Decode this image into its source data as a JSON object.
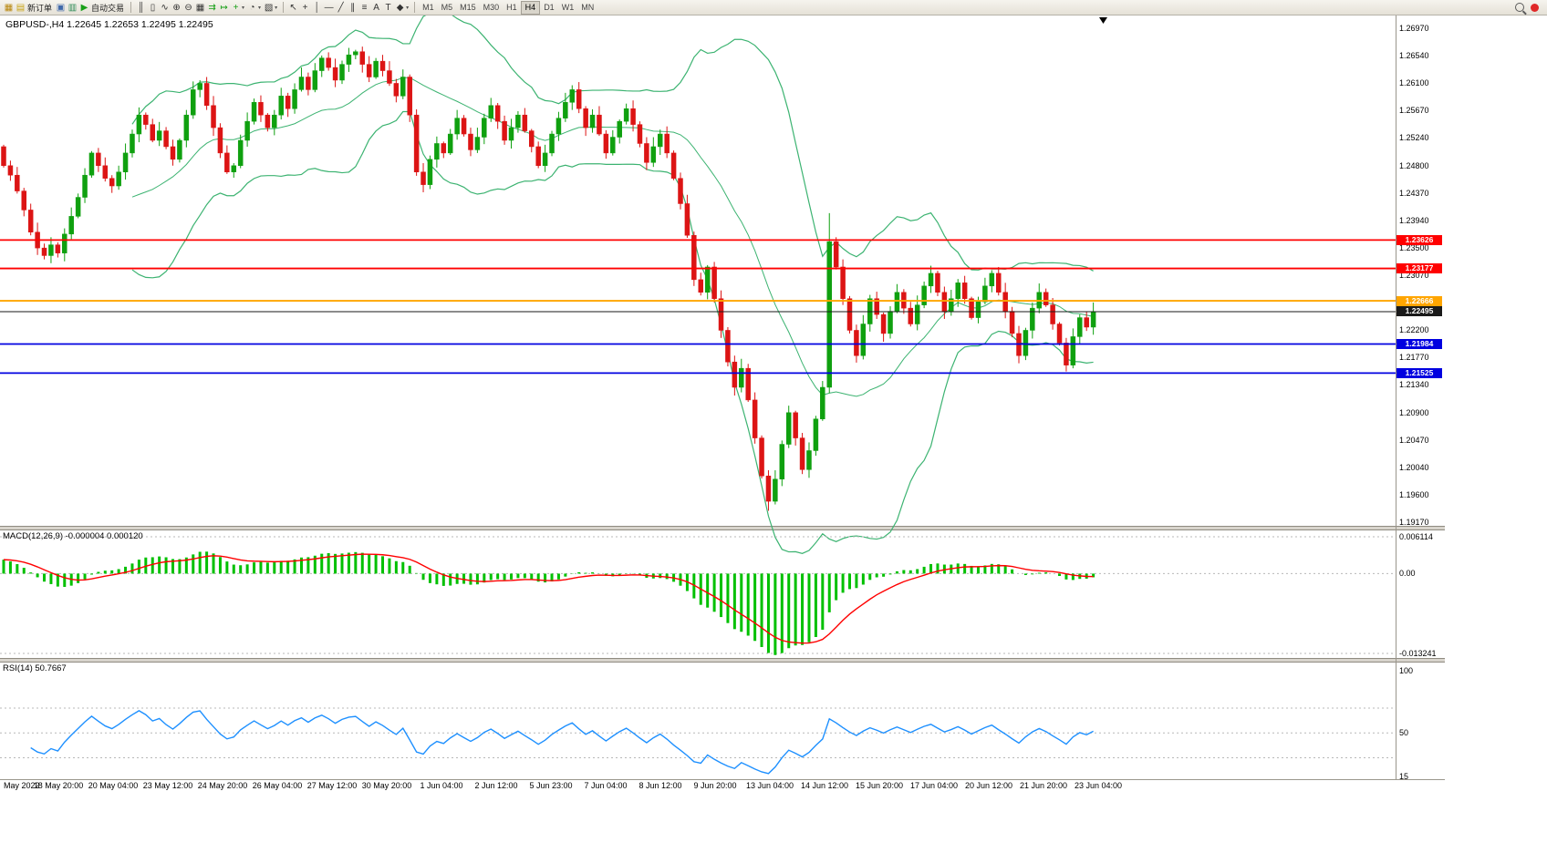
{
  "app": {
    "background": "#ffffff",
    "toolbar_bg": "#ece9e2"
  },
  "toolbar": {
    "icon_groups": [
      {
        "name": "file-group",
        "items": [
          {
            "name": "new-chart-icon",
            "glyph": "▦",
            "color": "#b8860b"
          },
          {
            "name": "new-order-icon",
            "glyph": "▤",
            "color": "#c8a415",
            "label": "新订单"
          },
          {
            "name": "charts-window-icon",
            "glyph": "▣",
            "color": "#4169aa"
          },
          {
            "name": "profiles-icon",
            "glyph": "▥",
            "color": "#2e8b57"
          },
          {
            "name": "auto-trading-icon",
            "glyph": "▶",
            "color": "#18a018",
            "label": "自动交易"
          }
        ]
      },
      {
        "name": "chart-control-group",
        "items": [
          {
            "name": "bar-chart-icon",
            "glyph": "║",
            "color": "#333333"
          },
          {
            "name": "candlestick-chart-icon",
            "glyph": "▯",
            "color": "#333333"
          },
          {
            "name": "line-chart-icon",
            "glyph": "∿",
            "color": "#333333"
          },
          {
            "name": "zoom-in-icon",
            "glyph": "⊕",
            "color": "#333333"
          },
          {
            "name": "zoom-out-icon",
            "glyph": "⊖",
            "color": "#333333"
          },
          {
            "name": "tile-windows-icon",
            "glyph": "▦",
            "color": "#333333"
          },
          {
            "name": "auto-scroll-icon",
            "glyph": "⇉",
            "color": "#18a018"
          },
          {
            "name": "chart-shift-icon",
            "glyph": "↦",
            "color": "#18a018"
          },
          {
            "name": "indicators-icon",
            "glyph": "+",
            "color": "#18a018",
            "caret": true
          },
          {
            "name": "periods-icon",
            "glyph": "◔",
            "color": "#333333",
            "caret": true
          },
          {
            "name": "template-icon",
            "glyph": "▧",
            "color": "#333333",
            "caret": true
          }
        ]
      },
      {
        "name": "tools-group",
        "items": [
          {
            "name": "cursor-icon",
            "glyph": "↖",
            "color": "#333333"
          },
          {
            "name": "crosshair-icon",
            "glyph": "+",
            "color": "#333333"
          },
          {
            "name": "vertical-line-icon",
            "glyph": "│",
            "color": "#333333"
          },
          {
            "name": "horizontal-line-icon",
            "glyph": "—",
            "color": "#333333"
          },
          {
            "name": "trendline-icon",
            "glyph": "╱",
            "color": "#333333"
          },
          {
            "name": "channel-icon",
            "glyph": "∥",
            "color": "#333333"
          },
          {
            "name": "fibonacci-icon",
            "glyph": "≡",
            "color": "#333333"
          },
          {
            "name": "text-icon",
            "glyph": "A",
            "color": "#333333"
          },
          {
            "name": "text-label-icon",
            "glyph": "T",
            "color": "#333333"
          },
          {
            "name": "shapes-icon",
            "glyph": "◆",
            "color": "#333333",
            "caret": true
          }
        ]
      }
    ],
    "timeframes": [
      {
        "label": "M1",
        "active": false
      },
      {
        "label": "M5",
        "active": false
      },
      {
        "label": "M15",
        "active": false
      },
      {
        "label": "M30",
        "active": false
      },
      {
        "label": "H1",
        "active": false
      },
      {
        "label": "H4",
        "active": true
      },
      {
        "label": "D1",
        "active": false
      },
      {
        "label": "W1",
        "active": false
      },
      {
        "label": "MN",
        "active": false
      }
    ]
  },
  "chart_title": "GBPUSD-,H4  1.22645 1.22653 1.22495 1.22495",
  "chart_data": {
    "type": "candlestick",
    "title": "GBPUSD-,H4",
    "symbol": "GBPUSD-",
    "period": "H4",
    "y_range": {
      "top": 1.2697,
      "bottom": 1.1917
    },
    "price_axis_labels": [
      "1.26970",
      "1.26540",
      "1.26100",
      "1.25670",
      "1.25240",
      "1.24800",
      "1.24370",
      "1.23940",
      "1.23500",
      "1.23070",
      "1.22630",
      "1.22200",
      "1.21770",
      "1.21340",
      "1.20900",
      "1.20470",
      "1.20040",
      "1.19600",
      "1.19170"
    ],
    "time_axis_labels": [
      "May 2022",
      "18 May 20:00",
      "20 May 04:00",
      "23 May 12:00",
      "24 May 20:00",
      "26 May 04:00",
      "27 May 12:00",
      "30 May 20:00",
      "1 Jun 04:00",
      "2 Jun 12:00",
      "5 Jun 23:00",
      "7 Jun 04:00",
      "8 Jun 12:00",
      "9 Jun 20:00",
      "13 Jun 04:00",
      "14 Jun 12:00",
      "15 Jun 20:00",
      "17 Jun 04:00",
      "20 Jun 12:00",
      "21 Jun 20:00",
      "23 Jun 04:00"
    ],
    "levels": [
      {
        "value": 1.23626,
        "label": "1.23626",
        "color": "#FF0000",
        "current": false
      },
      {
        "value": 1.23177,
        "label": "1.23177",
        "color": "#FF0000",
        "current": false
      },
      {
        "value": 1.22666,
        "label": "1.22666",
        "color": "#FFA500",
        "current": false
      },
      {
        "value": 1.22495,
        "label": "1.22495",
        "color": "#1a1a1a",
        "current": true
      },
      {
        "value": 1.21984,
        "label": "1.21984",
        "color": "#0000E0",
        "current": false
      },
      {
        "value": 1.21525,
        "label": "1.21525",
        "color": "#0000E0",
        "current": false
      }
    ],
    "candles": {
      "unit": 0.0001,
      "first_open": 12510,
      "closes": [
        12480,
        12465,
        12440,
        12410,
        12375,
        12350,
        12338,
        12355,
        12342,
        12372,
        12400,
        12430,
        12465,
        12500,
        12480,
        12460,
        12448,
        12470,
        12500,
        12530,
        12560,
        12545,
        12520,
        12535,
        12510,
        12490,
        12520,
        12560,
        12600,
        12610,
        12575,
        12540,
        12500,
        12470,
        12480,
        12520,
        12550,
        12580,
        12560,
        12540,
        12560,
        12590,
        12570,
        12600,
        12620,
        12600,
        12630,
        12650,
        12635,
        12615,
        12640,
        12655,
        12660,
        12640,
        12620,
        12645,
        12630,
        12610,
        12590,
        12620,
        12560,
        12470,
        12450,
        12490,
        12515,
        12500,
        12530,
        12555,
        12530,
        12505,
        12525,
        12555,
        12575,
        12550,
        12520,
        12540,
        12560,
        12535,
        12510,
        12480,
        12500,
        12530,
        12555,
        12580,
        12600,
        12570,
        12540,
        12560,
        12530,
        12500,
        12525,
        12550,
        12570,
        12545,
        12515,
        12485,
        12510,
        12530,
        12500,
        12460,
        12420,
        12370,
        12300,
        12280,
        12320,
        12270,
        12220,
        12170,
        12130,
        12160,
        12110,
        12050,
        11990,
        11950,
        11985,
        12040,
        12090,
        12050,
        12000,
        12030,
        12080,
        12130,
        12360,
        12320,
        12270,
        12220,
        12180,
        12230,
        12270,
        12245,
        12215,
        12250,
        12280,
        12255,
        12230,
        12260,
        12290,
        12310,
        12280,
        12250,
        12270,
        12295,
        12270,
        12240,
        12265,
        12290,
        12310,
        12280,
        12250,
        12215,
        12180,
        12220,
        12255,
        12280,
        12260,
        12230,
        12200,
        12165,
        12210,
        12240,
        12225,
        12249
      ],
      "overrides": {
        "113": {
          "low": 11935
        },
        "122": {
          "high": 12405
        }
      }
    },
    "colors": {
      "up": "#0FA00F",
      "down": "#DC1414"
    },
    "bollinger": {
      "period": 20,
      "deviation": 2,
      "color": "#3CB371"
    },
    "macd": {
      "label": "MACD(12,26,9) -0.000004 0.000120",
      "fast": 12,
      "slow": 26,
      "signal": 9,
      "main_value": -4e-06,
      "signal_value": 0.00012,
      "axis_labels": [
        {
          "label": "0.006114",
          "value": 0.006114
        },
        {
          "label": "0.00",
          "value": 0
        },
        {
          "label": "-0.013241",
          "value": -0.013241
        }
      ],
      "histogram_color": "#00C000",
      "signal_color": "#FF0000"
    },
    "rsi": {
      "label": "RSI(14) 50.7667",
      "period": 14,
      "value": 50.7667,
      "axis_labels": [
        {
          "label": "100",
          "value": 100
        },
        {
          "label": "50",
          "value": 50
        },
        {
          "label": "15",
          "value": 15
        }
      ],
      "levels": [
        70,
        50,
        30
      ],
      "color": "#1E90FF",
      "range": {
        "max": 100,
        "min": 15
      }
    }
  }
}
